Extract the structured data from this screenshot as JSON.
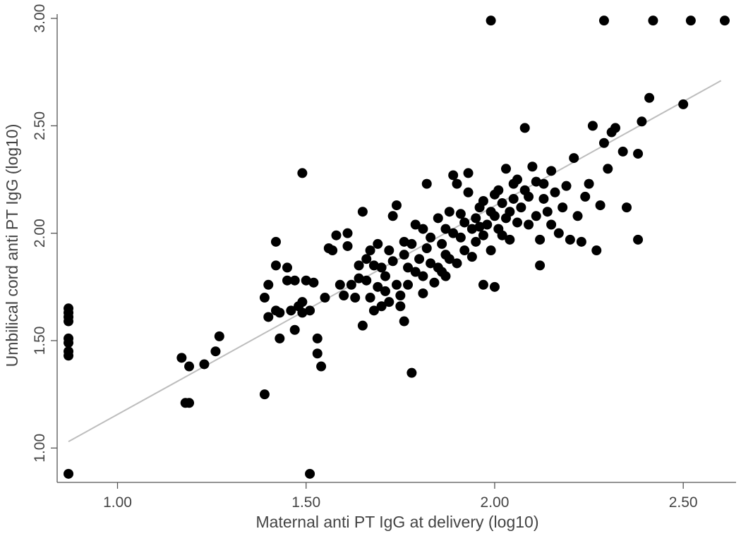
{
  "chart_data": {
    "type": "scatter",
    "title": "",
    "xlabel": "Maternal anti PT IgG at delivery (log10)",
    "ylabel": "Umbilical cord anti PT IgG (log10)",
    "xlim": [
      0.84,
      2.64
    ],
    "ylim": [
      0.84,
      3.02
    ],
    "x_ticks": [
      "1.00",
      "1.50",
      "2.00",
      "2.50"
    ],
    "y_ticks": [
      "1.00",
      "1.50",
      "2.00",
      "2.50",
      "3.00"
    ],
    "grid": false,
    "legend": "none",
    "marker_color": "#000000",
    "fit_line_color": "#bdbdbd",
    "fit_line": {
      "x": [
        0.87,
        2.6
      ],
      "y": [
        1.03,
        2.71
      ]
    },
    "points": [
      [
        0.87,
        1.65
      ],
      [
        0.87,
        1.63
      ],
      [
        0.87,
        1.61
      ],
      [
        0.87,
        1.59
      ],
      [
        0.87,
        1.51
      ],
      [
        0.87,
        1.49
      ],
      [
        0.87,
        1.45
      ],
      [
        0.87,
        1.43
      ],
      [
        0.87,
        0.88
      ],
      [
        1.17,
        1.42
      ],
      [
        1.18,
        1.21
      ],
      [
        1.19,
        1.21
      ],
      [
        1.19,
        1.38
      ],
      [
        1.23,
        1.39
      ],
      [
        1.26,
        1.45
      ],
      [
        1.27,
        1.52
      ],
      [
        1.39,
        1.25
      ],
      [
        1.39,
        1.7
      ],
      [
        1.4,
        1.61
      ],
      [
        1.4,
        1.76
      ],
      [
        1.42,
        1.96
      ],
      [
        1.42,
        1.85
      ],
      [
        1.42,
        1.64
      ],
      [
        1.43,
        1.51
      ],
      [
        1.43,
        1.63
      ],
      [
        1.45,
        1.84
      ],
      [
        1.45,
        1.78
      ],
      [
        1.46,
        1.64
      ],
      [
        1.47,
        1.55
      ],
      [
        1.47,
        1.78
      ],
      [
        1.48,
        1.66
      ],
      [
        1.49,
        1.63
      ],
      [
        1.49,
        1.68
      ],
      [
        1.49,
        2.28
      ],
      [
        1.5,
        1.78
      ],
      [
        1.51,
        1.64
      ],
      [
        1.52,
        1.77
      ],
      [
        1.51,
        0.88
      ],
      [
        1.53,
        1.51
      ],
      [
        1.53,
        1.44
      ],
      [
        1.54,
        1.38
      ],
      [
        1.55,
        1.7
      ],
      [
        1.56,
        1.93
      ],
      [
        1.57,
        1.92
      ],
      [
        1.58,
        1.99
      ],
      [
        1.59,
        1.76
      ],
      [
        1.6,
        1.71
      ],
      [
        1.61,
        2.0
      ],
      [
        1.61,
        1.94
      ],
      [
        1.62,
        1.76
      ],
      [
        1.63,
        1.7
      ],
      [
        1.64,
        1.85
      ],
      [
        1.64,
        1.79
      ],
      [
        1.65,
        1.57
      ],
      [
        1.65,
        2.1
      ],
      [
        1.66,
        1.88
      ],
      [
        1.66,
        1.78
      ],
      [
        1.67,
        1.92
      ],
      [
        1.67,
        1.7
      ],
      [
        1.68,
        1.64
      ],
      [
        1.68,
        1.85
      ],
      [
        1.69,
        1.95
      ],
      [
        1.69,
        1.75
      ],
      [
        1.7,
        1.84
      ],
      [
        1.7,
        1.66
      ],
      [
        1.71,
        1.8
      ],
      [
        1.71,
        1.73
      ],
      [
        1.72,
        1.92
      ],
      [
        1.72,
        1.68
      ],
      [
        1.73,
        1.87
      ],
      [
        1.73,
        2.08
      ],
      [
        1.74,
        2.13
      ],
      [
        1.74,
        1.76
      ],
      [
        1.75,
        1.66
      ],
      [
        1.75,
        1.71
      ],
      [
        1.76,
        1.9
      ],
      [
        1.76,
        1.96
      ],
      [
        1.76,
        1.59
      ],
      [
        1.77,
        1.84
      ],
      [
        1.77,
        1.76
      ],
      [
        1.78,
        1.95
      ],
      [
        1.78,
        1.35
      ],
      [
        1.79,
        2.04
      ],
      [
        1.79,
        1.82
      ],
      [
        1.8,
        1.88
      ],
      [
        1.81,
        2.02
      ],
      [
        1.81,
        1.8
      ],
      [
        1.81,
        1.72
      ],
      [
        1.82,
        2.23
      ],
      [
        1.82,
        1.93
      ],
      [
        1.83,
        1.98
      ],
      [
        1.83,
        1.86
      ],
      [
        1.84,
        1.77
      ],
      [
        1.85,
        1.84
      ],
      [
        1.85,
        2.07
      ],
      [
        1.86,
        1.95
      ],
      [
        1.86,
        1.82
      ],
      [
        1.87,
        1.8
      ],
      [
        1.87,
        2.02
      ],
      [
        1.87,
        1.9
      ],
      [
        1.88,
        2.1
      ],
      [
        1.88,
        1.88
      ],
      [
        1.89,
        2.0
      ],
      [
        1.89,
        2.27
      ],
      [
        1.9,
        2.23
      ],
      [
        1.9,
        1.86
      ],
      [
        1.91,
        2.09
      ],
      [
        1.91,
        1.98
      ],
      [
        1.92,
        1.92
      ],
      [
        1.92,
        2.05
      ],
      [
        1.93,
        2.19
      ],
      [
        1.93,
        2.28
      ],
      [
        1.94,
        2.02
      ],
      [
        1.94,
        1.89
      ],
      [
        1.95,
        2.07
      ],
      [
        1.95,
        1.96
      ],
      [
        1.96,
        2.12
      ],
      [
        1.96,
        2.03
      ],
      [
        1.97,
        1.99
      ],
      [
        1.97,
        2.15
      ],
      [
        1.98,
        2.04
      ],
      [
        1.99,
        2.1
      ],
      [
        1.99,
        1.92
      ],
      [
        2.0,
        2.18
      ],
      [
        2.0,
        2.08
      ],
      [
        2.01,
        2.2
      ],
      [
        2.01,
        2.02
      ],
      [
        2.02,
        2.14
      ],
      [
        2.02,
        1.99
      ],
      [
        2.03,
        2.07
      ],
      [
        2.03,
        2.3
      ],
      [
        2.04,
        2.1
      ],
      [
        2.04,
        1.97
      ],
      [
        2.05,
        2.23
      ],
      [
        2.05,
        2.16
      ],
      [
        2.06,
        2.05
      ],
      [
        2.06,
        2.25
      ],
      [
        2.07,
        2.12
      ],
      [
        2.08,
        2.2
      ],
      [
        2.08,
        2.49
      ],
      [
        2.09,
        2.04
      ],
      [
        2.09,
        2.17
      ],
      [
        2.1,
        2.31
      ],
      [
        2.11,
        2.08
      ],
      [
        2.11,
        2.24
      ],
      [
        2.12,
        1.97
      ],
      [
        2.13,
        2.16
      ],
      [
        2.13,
        2.23
      ],
      [
        2.14,
        2.1
      ],
      [
        2.15,
        2.04
      ],
      [
        2.15,
        2.29
      ],
      [
        2.16,
        2.19
      ],
      [
        2.17,
        2.0
      ],
      [
        2.18,
        2.12
      ],
      [
        2.19,
        2.22
      ],
      [
        2.2,
        1.97
      ],
      [
        2.21,
        2.35
      ],
      [
        2.22,
        2.08
      ],
      [
        2.23,
        1.96
      ],
      [
        2.24,
        2.17
      ],
      [
        2.25,
        2.23
      ],
      [
        2.26,
        2.5
      ],
      [
        2.27,
        1.92
      ],
      [
        2.28,
        2.13
      ],
      [
        2.29,
        2.42
      ],
      [
        2.3,
        2.3
      ],
      [
        2.31,
        2.47
      ],
      [
        2.32,
        2.49
      ],
      [
        2.34,
        2.38
      ],
      [
        2.35,
        2.12
      ],
      [
        2.38,
        1.97
      ],
      [
        2.38,
        2.37
      ],
      [
        2.39,
        2.52
      ],
      [
        2.41,
        2.63
      ],
      [
        2.5,
        2.6
      ],
      [
        1.97,
        1.76
      ],
      [
        2.0,
        1.75
      ],
      [
        2.12,
        1.85
      ],
      [
        1.99,
        2.99
      ],
      [
        2.29,
        2.99
      ],
      [
        2.42,
        2.99
      ],
      [
        2.52,
        2.99
      ],
      [
        2.61,
        2.99
      ]
    ]
  }
}
